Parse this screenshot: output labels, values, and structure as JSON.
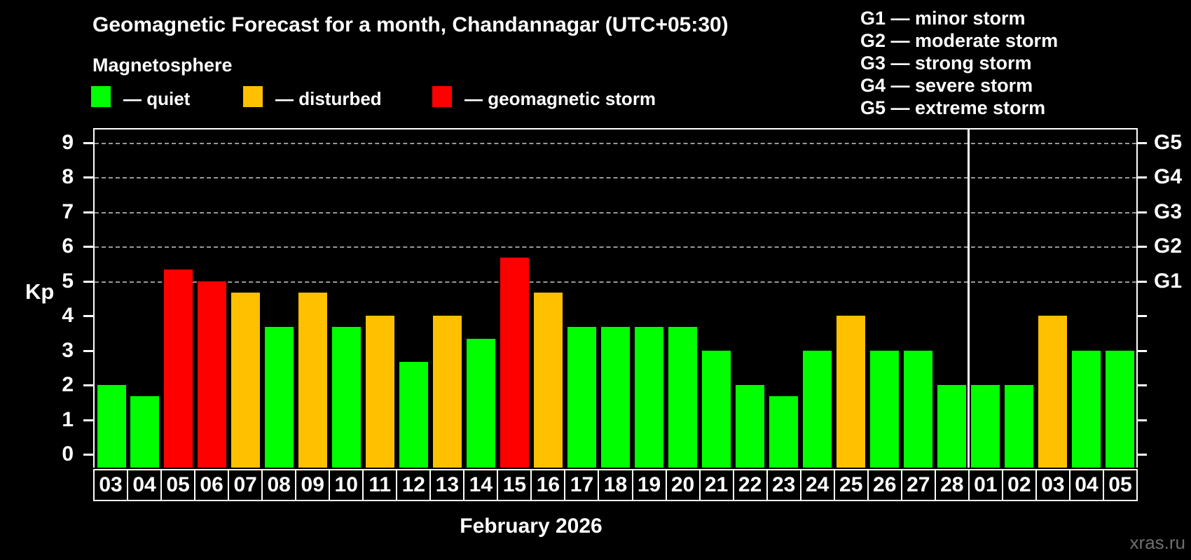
{
  "header": {
    "title": "Geomagnetic Forecast for a month, Chandannagar (UTC+05:30)",
    "subtitle": "Magnetosphere"
  },
  "legend": {
    "quiet_label": "— quiet",
    "disturbed_label": "— disturbed",
    "storm_label": "— geomagnetic storm"
  },
  "g_legend": {
    "lines": [
      "G1 — minor storm",
      "G2 — moderate storm",
      "G3 — strong storm",
      "G4 — severe storm",
      "G5 — extreme storm"
    ]
  },
  "axis": {
    "y_label": "Kp",
    "x_label": "February 2026"
  },
  "watermark": "xras.ru",
  "colors": {
    "quiet": "#00ff00",
    "disturbed": "#ffc000",
    "storm": "#ff0000",
    "grid": "#999999",
    "axis": "#ffffff"
  },
  "chart_data": {
    "type": "bar",
    "title": "Geomagnetic Forecast for a month, Chandannagar (UTC+05:30)",
    "xlabel": "February 2026",
    "ylabel": "Kp",
    "ylim": [
      0,
      9.4
    ],
    "y_ticks": [
      0,
      1,
      2,
      3,
      4,
      5,
      6,
      7,
      8,
      9
    ],
    "gridlines_at": [
      5,
      6,
      7,
      8,
      9
    ],
    "grid": true,
    "legend_position": "top-left",
    "right_axis": [
      {
        "value": 5,
        "label": "G1"
      },
      {
        "value": 6,
        "label": "G2"
      },
      {
        "value": 7,
        "label": "G3"
      },
      {
        "value": 8,
        "label": "G4"
      },
      {
        "value": 9,
        "label": "G5"
      }
    ],
    "categories": [
      "03",
      "04",
      "05",
      "06",
      "07",
      "08",
      "09",
      "10",
      "11",
      "12",
      "13",
      "14",
      "15",
      "16",
      "17",
      "18",
      "19",
      "20",
      "21",
      "22",
      "23",
      "24",
      "25",
      "26",
      "27",
      "28",
      "01",
      "02",
      "03",
      "04",
      "05"
    ],
    "values": [
      2,
      1.67,
      5.33,
      5,
      4.67,
      3.67,
      4.67,
      3.67,
      4,
      2.67,
      4,
      3.33,
      5.67,
      4.67,
      3.67,
      3.67,
      3.67,
      3.67,
      3,
      2,
      1.67,
      3,
      4,
      3,
      3,
      2,
      2,
      2,
      4,
      3,
      3
    ],
    "statuses": [
      "quiet",
      "quiet",
      "storm",
      "storm",
      "disturbed",
      "quiet",
      "disturbed",
      "quiet",
      "disturbed",
      "quiet",
      "disturbed",
      "quiet",
      "storm",
      "disturbed",
      "quiet",
      "quiet",
      "quiet",
      "quiet",
      "quiet",
      "quiet",
      "quiet",
      "quiet",
      "disturbed",
      "quiet",
      "quiet",
      "quiet",
      "quiet",
      "quiet",
      "disturbed",
      "quiet",
      "quiet"
    ],
    "month_separator_after_index": 25
  }
}
